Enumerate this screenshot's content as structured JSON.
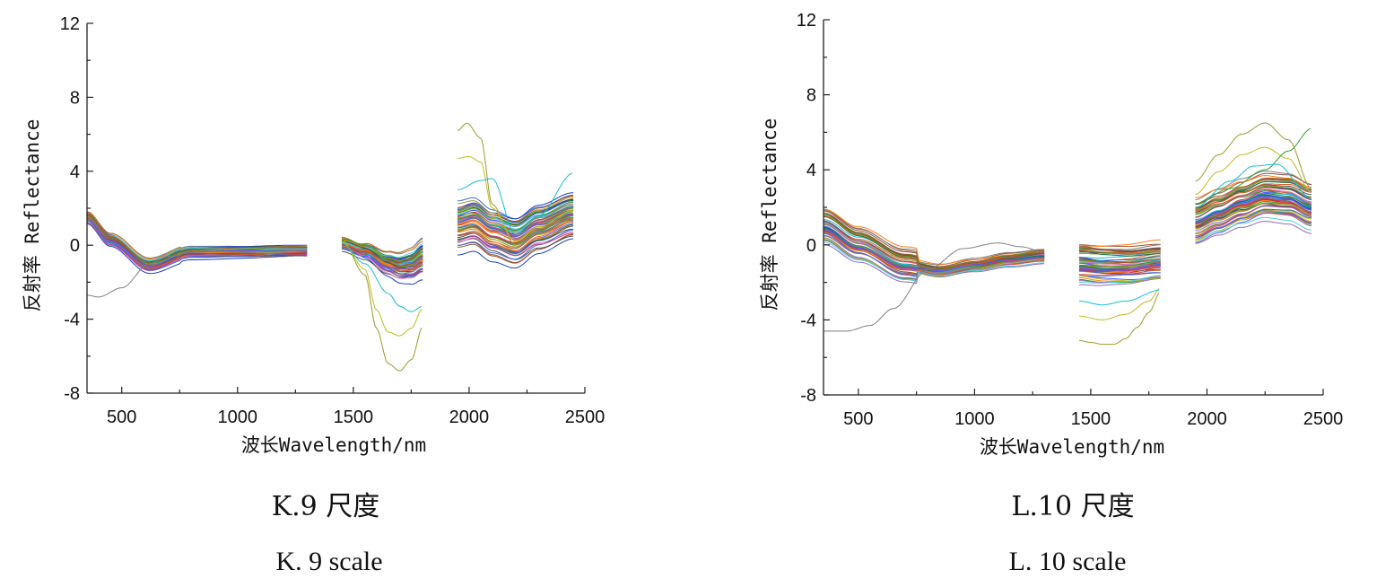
{
  "palette": [
    "#1f3fbf",
    "#d62728",
    "#2ca02c",
    "#9e9a2a",
    "#17becf",
    "#8c564b",
    "#e377c2",
    "#7f7f7f",
    "#ff7f0e",
    "#9467bd",
    "#3b6bd6",
    "#bcbd22",
    "#1a7a3a",
    "#c04080",
    "#4dd0e1",
    "#555555",
    "#e05a30",
    "#6a8f20",
    "#a0522d",
    "#5060ff"
  ],
  "chart_data": [
    {
      "type": "line",
      "xlabel": "波长Wavelength/nm",
      "ylabel": "反射率 Reflectance",
      "xlim": [
        350,
        2500
      ],
      "ylim": [
        -8,
        12
      ],
      "xticks": [
        500,
        1000,
        1500,
        2000,
        2500
      ],
      "yticks": [
        -8,
        -4,
        0,
        4,
        8,
        12
      ],
      "grid": false,
      "segments": [
        [
          350,
          1300
        ],
        [
          1450,
          1800
        ],
        [
          1950,
          2450
        ]
      ],
      "caption_cn": "K.9 尺度",
      "caption_en": "K. 9 scale",
      "series_count": 60,
      "band_mean": [
        {
          "x": [
            350,
            450,
            620,
            800,
            1000,
            1300
          ],
          "y": [
            1.5,
            0.3,
            -1.1,
            -0.4,
            -0.35,
            -0.3
          ]
        },
        {
          "x": [
            1450,
            1550,
            1650,
            1700,
            1750,
            1800
          ],
          "y": [
            0.1,
            -0.3,
            -1.0,
            -1.2,
            -1.1,
            -0.7
          ]
        },
        {
          "x": [
            1950,
            2020,
            2100,
            2200,
            2300,
            2450
          ],
          "y": [
            1.0,
            1.2,
            0.6,
            0.2,
            0.9,
            1.6
          ]
        }
      ],
      "outliers": [
        {
          "x": [
            350,
            400,
            500,
            620,
            700,
            800,
            900,
            1000,
            1300
          ],
          "y": [
            -2.7,
            -2.8,
            -2.3,
            -1.0,
            -0.6,
            -0.4,
            -0.35,
            -0.35,
            -0.3
          ],
          "color": "#7f7f7f"
        },
        {
          "x": [
            1450,
            1550,
            1600,
            1650,
            1700,
            1750,
            1800
          ],
          "y": [
            0.3,
            -1.6,
            -4.5,
            -6.4,
            -6.8,
            -6.2,
            -4.4
          ],
          "color": "#9e9a2a"
        },
        {
          "x": [
            1450,
            1550,
            1600,
            1650,
            1700,
            1750,
            1800
          ],
          "y": [
            0.2,
            -1.3,
            -3.5,
            -4.7,
            -4.9,
            -4.5,
            -3.4
          ],
          "color": "#bcbd22"
        },
        {
          "x": [
            1450,
            1550,
            1650,
            1700,
            1750,
            1800
          ],
          "y": [
            0.1,
            -1.0,
            -2.6,
            -3.3,
            -3.6,
            -3.3
          ],
          "color": "#17becf"
        },
        {
          "x": [
            1950,
            1990,
            2050,
            2100,
            2200,
            2300,
            2450
          ],
          "y": [
            6.2,
            6.6,
            5.8,
            2.2,
            0.0,
            0.9,
            1.8
          ],
          "color": "#9e9a2a"
        },
        {
          "x": [
            1950,
            2000,
            2050,
            2100,
            2200,
            2300,
            2450
          ],
          "y": [
            4.7,
            4.8,
            4.5,
            2.0,
            0.2,
            1.0,
            1.9
          ],
          "color": "#bcbd22"
        },
        {
          "x": [
            1950,
            2050,
            2100,
            2200,
            2300,
            2450
          ],
          "y": [
            3.0,
            3.5,
            3.6,
            0.6,
            1.6,
            3.9
          ],
          "color": "#17becf"
        }
      ]
    },
    {
      "type": "line",
      "xlabel": "波长Wavelength/nm",
      "ylabel": "反射率 Reflectance",
      "xlim": [
        350,
        2500
      ],
      "ylim": [
        -8,
        12
      ],
      "xticks": [
        500,
        1000,
        1500,
        2000,
        2500
      ],
      "yticks": [
        -8,
        -4,
        0,
        4,
        8,
        12
      ],
      "grid": false,
      "segments": [
        [
          350,
          1300
        ],
        [
          1450,
          1800
        ],
        [
          1950,
          2450
        ]
      ],
      "caption_cn": "L.10 尺度",
      "caption_en": "L. 10 scale",
      "series_count": 60,
      "band_mean": [
        {
          "x": [
            350,
            500,
            700,
            850,
            1000,
            1150,
            1300
          ],
          "y": [
            1.0,
            0.0,
            -1.1,
            -1.4,
            -1.1,
            -0.8,
            -0.6
          ]
        },
        {
          "x": [
            1450,
            1550,
            1650,
            1800
          ],
          "y": [
            -1.0,
            -1.1,
            -1.1,
            -0.9
          ]
        },
        {
          "x": [
            1950,
            2050,
            2150,
            2250,
            2350,
            2450
          ],
          "y": [
            1.2,
            1.7,
            2.2,
            2.6,
            2.5,
            2.0
          ]
        }
      ],
      "outliers": [
        {
          "x": [
            350,
            450,
            550,
            650,
            800,
            950,
            1100,
            1200,
            1300
          ],
          "y": [
            -4.6,
            -4.6,
            -4.3,
            -3.4,
            -1.3,
            -0.2,
            0.1,
            -0.1,
            -0.4
          ],
          "color": "#7f7f7f"
        },
        {
          "x": [
            1450,
            1500,
            1550,
            1600,
            1650,
            1700,
            1750,
            1800
          ],
          "y": [
            -5.1,
            -5.2,
            -5.3,
            -5.3,
            -5.0,
            -4.4,
            -3.6,
            -2.5
          ],
          "color": "#9e9a2a"
        },
        {
          "x": [
            1450,
            1550,
            1650,
            1750,
            1800
          ],
          "y": [
            -3.8,
            -4.0,
            -3.7,
            -3.0,
            -2.3
          ],
          "color": "#bcbd22"
        },
        {
          "x": [
            1450,
            1550,
            1650,
            1800
          ],
          "y": [
            -3.0,
            -3.2,
            -3.0,
            -2.4
          ],
          "color": "#17becf"
        },
        {
          "x": [
            1950,
            2050,
            2150,
            2250,
            2350,
            2450
          ],
          "y": [
            3.4,
            4.8,
            5.9,
            6.5,
            5.6,
            3.0
          ],
          "color": "#9e9a2a"
        },
        {
          "x": [
            1950,
            2050,
            2150,
            2250,
            2350,
            2450
          ],
          "y": [
            2.7,
            3.9,
            4.8,
            5.2,
            4.6,
            2.8
          ],
          "color": "#bcbd22"
        },
        {
          "x": [
            1950,
            2100,
            2250,
            2350,
            2450
          ],
          "y": [
            2.2,
            3.0,
            4.0,
            5.0,
            6.2
          ],
          "color": "#2ca02c"
        },
        {
          "x": [
            1950,
            2100,
            2200,
            2300,
            2450
          ],
          "y": [
            2.0,
            3.4,
            4.2,
            4.3,
            2.5
          ],
          "color": "#17becf"
        }
      ]
    }
  ]
}
